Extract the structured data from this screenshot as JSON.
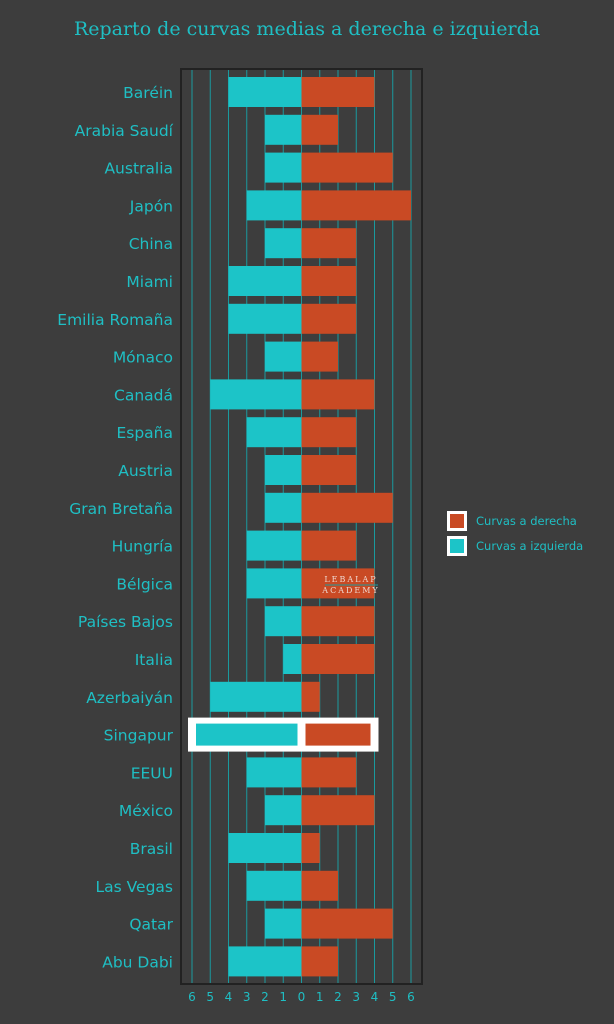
{
  "chart_data": {
    "type": "bar",
    "orientation": "horizontal-diverging",
    "title": "Reparto de curvas medias a derecha e izquierda",
    "categories": [
      "Baréin",
      "Arabia Saudí",
      "Australia",
      "Japón",
      "China",
      "Miami",
      "Emilia Romaña",
      "Mónaco",
      "Canadá",
      "España",
      "Austria",
      "Gran Bretaña",
      "Hungría",
      "Bélgica",
      "Países Bajos",
      "Italia",
      "Azerbaiyán",
      "Singapur",
      "EEUU",
      "México",
      "Brasil",
      "Las Vegas",
      "Qatar",
      "Abu Dabi"
    ],
    "series": [
      {
        "name": "Curvas a derecha",
        "color": "#c94a24",
        "values": [
          4,
          2,
          5,
          6,
          3,
          3,
          3,
          2,
          4,
          3,
          3,
          5,
          3,
          4,
          4,
          4,
          1,
          4,
          3,
          4,
          1,
          2,
          5,
          2
        ]
      },
      {
        "name": "Curvas a izquierda",
        "color": "#1cc4c8",
        "values": [
          4,
          2,
          2,
          3,
          2,
          4,
          4,
          2,
          5,
          3,
          2,
          2,
          3,
          3,
          2,
          1,
          5,
          6,
          3,
          2,
          4,
          3,
          2,
          4
        ]
      }
    ],
    "highlighted_category": "Singapur",
    "xlim": [
      -6,
      6
    ],
    "xticks": [
      "6",
      "5",
      "4",
      "3",
      "2",
      "1",
      "0",
      "1",
      "2",
      "3",
      "4",
      "5",
      "6"
    ],
    "grid": true,
    "legend_position": "right"
  },
  "watermark": {
    "line1": "LEBALAP",
    "line2": "ACADEMY"
  }
}
